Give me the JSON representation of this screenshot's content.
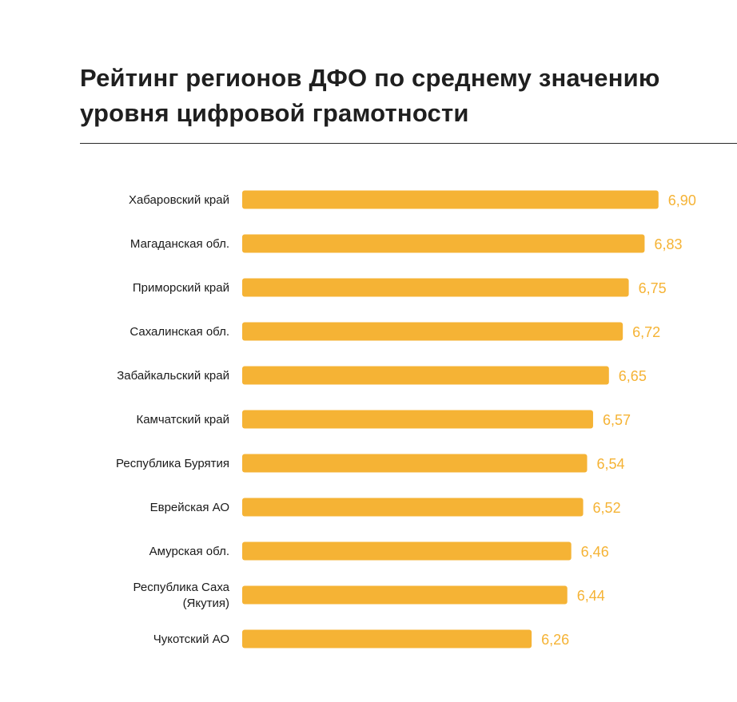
{
  "title": "Рейтинг регионов ДФО по среднему значению уровня цифровой грамотности",
  "chart_data": {
    "type": "bar",
    "orientation": "horizontal",
    "title": "Рейтинг регионов ДФО по среднему значению уровня цифровой грамотности",
    "categories": [
      [
        "Хабаровский край"
      ],
      [
        "Магаданская обл."
      ],
      [
        "Приморский край"
      ],
      [
        "Сахалинская обл."
      ],
      [
        "Забайкальский край"
      ],
      [
        "Камчатский край"
      ],
      [
        "Республика Бурятия"
      ],
      [
        "Еврейская АО"
      ],
      [
        "Амурская обл."
      ],
      [
        "Республика Саха",
        "(Якутия)"
      ],
      [
        "Чукотский АО"
      ]
    ],
    "values": [
      6.9,
      6.83,
      6.75,
      6.72,
      6.65,
      6.57,
      6.54,
      6.52,
      6.46,
      6.44,
      6.26
    ],
    "value_labels": [
      "6,90",
      "6,83",
      "6,75",
      "6,72",
      "6,65",
      "6,57",
      "6,54",
      "6,52",
      "6,46",
      "6,44",
      "6,26"
    ],
    "bar_color": "#F5B335",
    "value_label_color": "#F5B335",
    "grid": false,
    "legend": "none"
  }
}
